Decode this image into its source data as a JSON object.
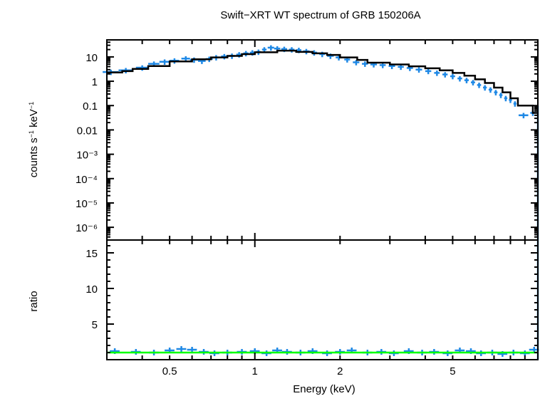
{
  "chart_data": [
    {
      "type": "scatter",
      "panel": "spectrum",
      "title": "Swift−XRT WT spectrum of GRB 150206A",
      "xlabel": "Energy (keV)",
      "ylabel": "counts s⁻¹ keV⁻¹",
      "xscale": "log",
      "yscale": "log",
      "xlim": [
        0.3,
        10
      ],
      "ylim": [
        3e-07,
        50
      ],
      "ytick_labels": [
        "10",
        "1",
        "0.1",
        "0.01",
        "10⁻³",
        "10⁻⁴",
        "10⁻⁵",
        "10⁻⁶"
      ],
      "ytick_values": [
        10,
        1,
        0.1,
        0.01,
        0.001,
        0.0001,
        1e-05,
        1e-06
      ],
      "series": [
        {
          "name": "data",
          "color": "#1e88e5",
          "x": [
            0.31,
            0.35,
            0.4,
            0.44,
            0.48,
            0.52,
            0.57,
            0.61,
            0.65,
            0.69,
            0.73,
            0.78,
            0.83,
            0.88,
            0.93,
            0.98,
            1.03,
            1.08,
            1.14,
            1.2,
            1.27,
            1.35,
            1.43,
            1.52,
            1.62,
            1.73,
            1.85,
            1.98,
            2.12,
            2.28,
            2.45,
            2.63,
            2.83,
            3.05,
            3.28,
            3.53,
            3.8,
            4.1,
            4.4,
            4.7,
            5.0,
            5.3,
            5.6,
            5.9,
            6.2,
            6.5,
            6.8,
            7.1,
            7.4,
            7.7,
            8.0,
            8.3,
            8.9,
            9.6
          ],
          "y": [
            2.4,
            2.8,
            3.6,
            5.2,
            6.3,
            7.0,
            8.5,
            7.6,
            6.8,
            8.2,
            9.5,
            10.5,
            11,
            12.5,
            14,
            15,
            16,
            20,
            24,
            22,
            21,
            20,
            19,
            17,
            15,
            13,
            11,
            9.5,
            7.8,
            6.0,
            5.2,
            4.9,
            4.6,
            4.2,
            3.9,
            3.5,
            3.0,
            2.6,
            2.2,
            1.9,
            1.6,
            1.3,
            1.1,
            0.9,
            0.7,
            0.55,
            0.45,
            0.35,
            0.27,
            0.2,
            0.17,
            0.12,
            0.04,
            0.05
          ],
          "xerr": [
            0.02,
            0.02,
            0.02,
            0.02,
            0.02,
            0.02,
            0.02,
            0.02,
            0.02,
            0.02,
            0.02,
            0.02,
            0.02,
            0.02,
            0.02,
            0.02,
            0.02,
            0.02,
            0.03,
            0.03,
            0.03,
            0.03,
            0.03,
            0.04,
            0.04,
            0.04,
            0.05,
            0.05,
            0.05,
            0.06,
            0.06,
            0.07,
            0.07,
            0.08,
            0.08,
            0.09,
            0.1,
            0.1,
            0.1,
            0.1,
            0.1,
            0.1,
            0.1,
            0.1,
            0.1,
            0.1,
            0.1,
            0.1,
            0.1,
            0.1,
            0.1,
            0.1,
            0.35,
            0.2
          ],
          "yerr_frac": 0.25
        },
        {
          "name": "model",
          "color": "#000000",
          "step_x": [
            0.3,
            0.34,
            0.37,
            0.42,
            0.5,
            0.6,
            0.7,
            0.8,
            0.9,
            1.0,
            1.2,
            1.4,
            1.6,
            1.8,
            2.0,
            2.3,
            2.5,
            3.0,
            3.5,
            4.0,
            4.5,
            5.0,
            5.5,
            6.0,
            6.5,
            7.0,
            7.5,
            8.0,
            8.5,
            9.0,
            9.6,
            10
          ],
          "step_y": [
            2.3,
            2.6,
            3.2,
            4.2,
            6.5,
            8.0,
            9.5,
            11,
            13,
            15.5,
            18,
            16,
            14,
            12,
            9.5,
            7.5,
            5.8,
            4.9,
            4.1,
            3.4,
            2.8,
            2.2,
            1.7,
            1.2,
            0.85,
            0.55,
            0.35,
            0.2,
            0.1,
            0.1,
            0.05,
            0.03
          ]
        }
      ]
    },
    {
      "type": "scatter",
      "panel": "ratio",
      "xlabel": "Energy (keV)",
      "ylabel": "ratio",
      "xscale": "log",
      "yscale": "linear",
      "xlim": [
        0.3,
        10
      ],
      "ylim": [
        0,
        16.8
      ],
      "ytick_labels": [
        "5",
        "10",
        "15"
      ],
      "ytick_values": [
        5,
        10,
        15
      ],
      "xtick_labels": [
        "0.5",
        "1",
        "2",
        "5"
      ],
      "xtick_values": [
        0.5,
        1,
        2,
        5
      ],
      "reference_line": {
        "value": 1,
        "color": "#00ff00"
      },
      "series": [
        {
          "name": "ratio",
          "color": "#1e88e5",
          "x": [
            0.32,
            0.38,
            0.44,
            0.5,
            0.55,
            0.6,
            0.66,
            0.72,
            0.8,
            0.9,
            1.0,
            1.1,
            1.2,
            1.3,
            1.45,
            1.6,
            1.8,
            2.0,
            2.2,
            2.5,
            2.8,
            3.1,
            3.5,
            3.9,
            4.3,
            4.8,
            5.3,
            5.8,
            6.3,
            6.9,
            7.5,
            8.2,
            9.0,
            9.7
          ],
          "y": [
            1.2,
            1.1,
            1.0,
            1.3,
            1.5,
            1.4,
            1.1,
            0.9,
            1.0,
            1.1,
            1.2,
            0.9,
            1.3,
            1.1,
            1.0,
            1.2,
            0.9,
            1.1,
            1.3,
            1.0,
            1.1,
            0.9,
            1.2,
            1.0,
            1.1,
            0.9,
            1.3,
            1.2,
            0.9,
            1.0,
            0.8,
            1.0,
            0.9,
            1.4
          ]
        }
      ]
    }
  ]
}
